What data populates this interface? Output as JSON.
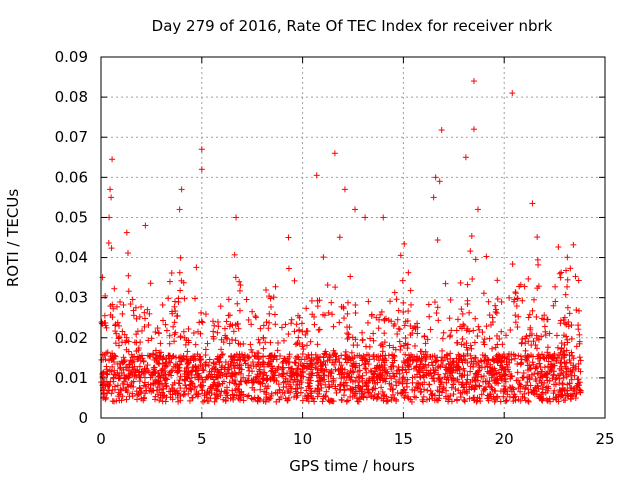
{
  "chart_data": {
    "type": "scatter",
    "title": "Day 279 of 2016, Rate Of TEC Index for receiver nbrk",
    "xlabel": "GPS time / hours",
    "ylabel": "ROTI / TECUs",
    "xlim": [
      0,
      25
    ],
    "ylim": [
      0,
      0.09
    ],
    "xticks": [
      "0",
      "5",
      "10",
      "15",
      "20",
      "25"
    ],
    "yticks": [
      "0",
      "0.01",
      "0.02",
      "0.03",
      "0.04",
      "0.05",
      "0.06",
      "0.07",
      "0.08",
      "0.09"
    ],
    "grid": true,
    "marker": "+",
    "color": "#ff0000",
    "series": [
      {
        "name": "ROTI",
        "note": "dense cloud of roughly one observation per 30 s per satellite between 0 and 23.8 h; bulk values 0.003-0.03 TECU, representative outliers listed",
        "points": [
          [
            0.55,
            0.0645
          ],
          [
            0.45,
            0.057
          ],
          [
            0.5,
            0.055
          ],
          [
            0.4,
            0.05
          ],
          [
            4.0,
            0.057
          ],
          [
            3.9,
            0.052
          ],
          [
            5.0,
            0.067
          ],
          [
            5.0,
            0.062
          ],
          [
            6.7,
            0.05
          ],
          [
            9.3,
            0.045
          ],
          [
            10.7,
            0.0605
          ],
          [
            11.6,
            0.066
          ],
          [
            12.1,
            0.057
          ],
          [
            12.6,
            0.052
          ],
          [
            13.1,
            0.05
          ],
          [
            14.0,
            0.05
          ],
          [
            16.6,
            0.06
          ],
          [
            16.8,
            0.059
          ],
          [
            16.9,
            0.0718
          ],
          [
            16.5,
            0.055
          ],
          [
            18.1,
            0.065
          ],
          [
            18.5,
            0.084
          ],
          [
            18.5,
            0.072
          ],
          [
            18.7,
            0.052
          ],
          [
            20.4,
            0.081
          ],
          [
            21.4,
            0.0535
          ],
          [
            2.2,
            0.048
          ],
          [
            22.8,
            0.035
          ]
        ]
      }
    ]
  }
}
